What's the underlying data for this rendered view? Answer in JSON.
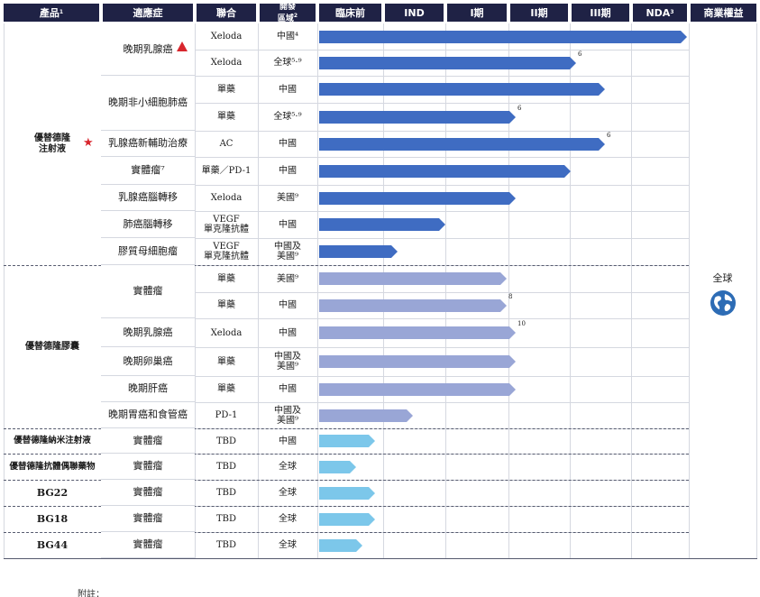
{
  "headers": {
    "product": "產品",
    "product_sup": "1",
    "indication": "適應症",
    "combo": "聯合",
    "region_l1": "開發",
    "region_l2": "區域",
    "region_sup": "2",
    "preclinical": "臨床前",
    "ind": "IND",
    "p1": "I期",
    "p2": "II期",
    "p3": "III期",
    "nda": "NDA",
    "nda_sup": "3",
    "rights": "商業權益"
  },
  "products": {
    "p_injection_l1": "優替德隆",
    "p_injection_l2": "注射液",
    "p_capsule": "優替德隆膠囊",
    "p_nano": "優替德隆納米注射液",
    "p_adc": "優替德隆抗體偶聯藥物",
    "p_bg22": "BG22",
    "p_bg18": "BG18",
    "p_bg44": "BG44"
  },
  "rights": {
    "label": "全球"
  },
  "colors": {
    "header": "#1f2245",
    "injection": "#3f6cc2",
    "capsule": "#99a6d6",
    "other": "#7cc7ea"
  },
  "rows": [
    {
      "ind": "晚期乳腺癌",
      "combo": "Xeloda",
      "region": "中國⁴",
      "end": 762,
      "note": "",
      "color": "injection"
    },
    {
      "ind": "",
      "combo": "Xeloda",
      "region": "全球⁵·⁹",
      "end": 639,
      "note": "6",
      "color": "injection"
    },
    {
      "ind": "晚期非小細胞肺癌",
      "combo": "單藥",
      "region": "中國",
      "end": 671,
      "note": "",
      "color": "injection"
    },
    {
      "ind": "",
      "combo": "單藥",
      "region": "全球⁵·⁹",
      "end": 572,
      "note": "6",
      "color": "injection"
    },
    {
      "ind": "乳腺癌新輔助治療",
      "combo": "AC",
      "region": "中國",
      "end": 671,
      "note": "6",
      "color": "injection"
    },
    {
      "ind": "實體瘤⁷",
      "combo": "單藥／PD-1",
      "region": "中國",
      "end": 633,
      "note": "",
      "color": "injection"
    },
    {
      "ind": "乳腺癌腦轉移",
      "combo": "Xeloda",
      "region": "美國⁹",
      "end": 572,
      "note": "",
      "color": "injection"
    },
    {
      "ind": "肺癌腦轉移",
      "combo": "VEGF 單克隆抗體",
      "region": "中國",
      "end": 494,
      "note": "",
      "color": "injection"
    },
    {
      "ind": "膠質母細胞瘤",
      "combo": "VEGF 單克隆抗體",
      "region": "中國及 美國⁹",
      "end": 441,
      "note": "",
      "color": "injection"
    },
    {
      "ind": "實體瘤",
      "combo": "單藥",
      "region": "美國⁹",
      "end": 562,
      "note": "",
      "color": "capsule"
    },
    {
      "ind": "",
      "combo": "單藥",
      "region": "中國",
      "end": 562,
      "note": "8",
      "color": "capsule"
    },
    {
      "ind": "晚期乳腺癌",
      "combo": "Xeloda",
      "region": "中國",
      "end": 572,
      "note": "10",
      "color": "capsule"
    },
    {
      "ind": "晚期卵巢癌",
      "combo": "單藥",
      "region": "中國及 美國⁹",
      "end": 572,
      "note": "",
      "color": "capsule"
    },
    {
      "ind": "晚期肝癌",
      "combo": "單藥",
      "region": "中國",
      "end": 572,
      "note": "",
      "color": "capsule"
    },
    {
      "ind": "晚期胃癌和食管癌",
      "combo": "PD-1",
      "region": "中國及 美國⁹",
      "end": 458,
      "note": "",
      "color": "capsule"
    },
    {
      "ind": "實體瘤",
      "combo": "TBD",
      "region": "中國",
      "end": 416,
      "note": "",
      "color": "other"
    },
    {
      "ind": "實體瘤",
      "combo": "TBD",
      "region": "全球",
      "end": 395,
      "note": "",
      "color": "other"
    },
    {
      "ind": "實體瘤",
      "combo": "TBD",
      "region": "全球",
      "end": 416,
      "note": "",
      "color": "other"
    },
    {
      "ind": "實體瘤",
      "combo": "TBD",
      "region": "全球",
      "end": 416,
      "note": "",
      "color": "other"
    },
    {
      "ind": "實體瘤",
      "combo": "TBD",
      "region": "全球",
      "end": 402,
      "note": "",
      "color": "other"
    }
  ],
  "footnote": "附註："
}
